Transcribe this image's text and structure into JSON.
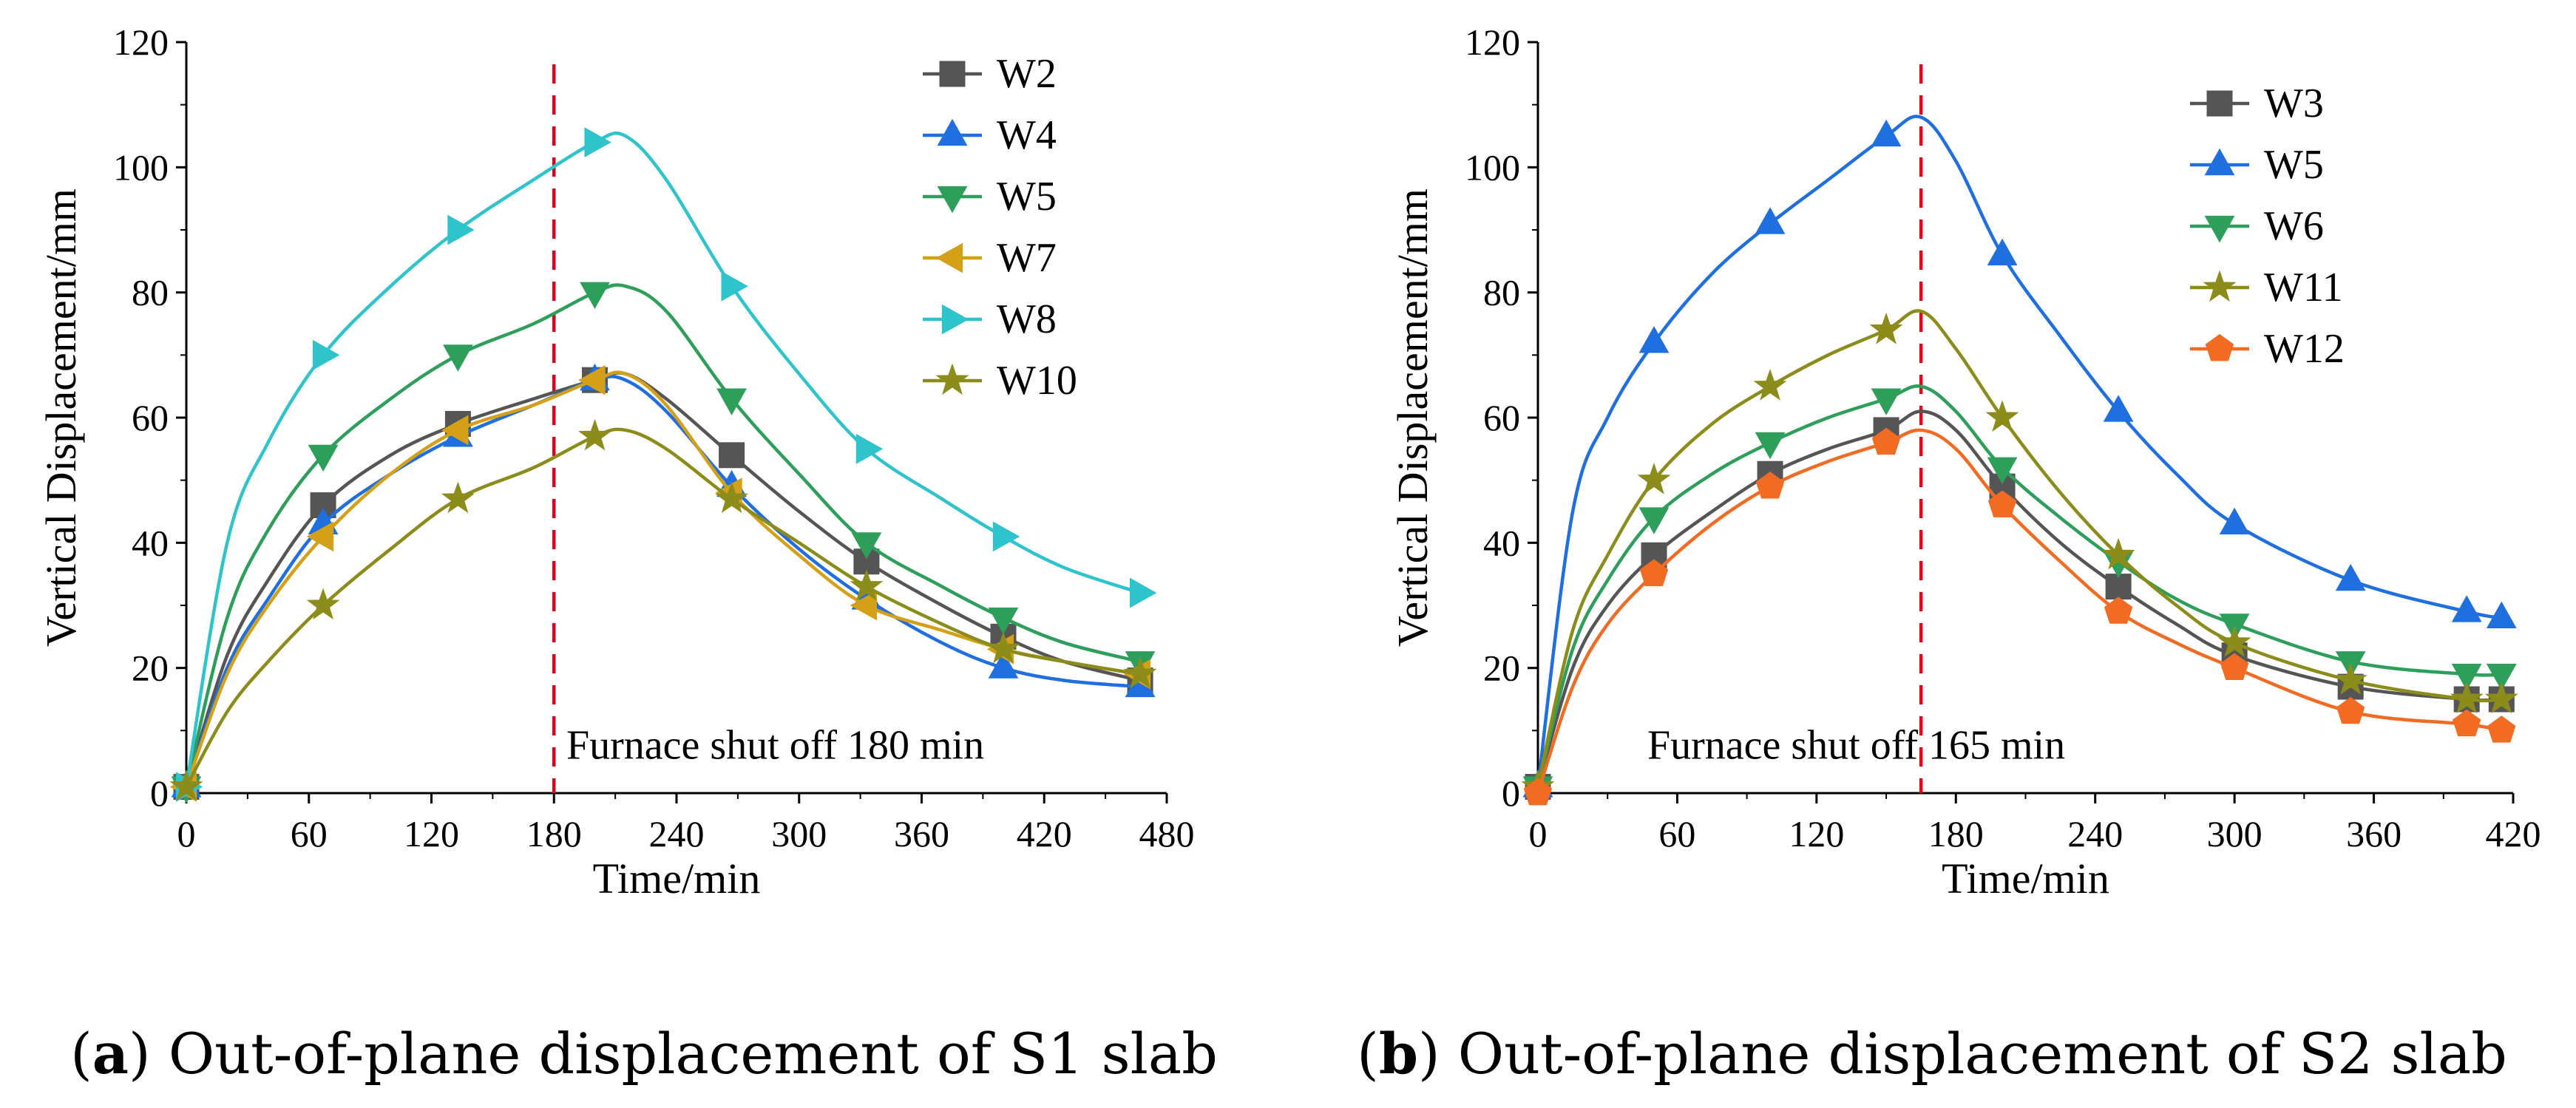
{
  "chart_data": [
    {
      "type": "line",
      "panel_label": "a",
      "caption": "Out-of-plane displacement of S1 slab",
      "xlabel": "Time/min",
      "ylabel": "Vertical Displacement/mm",
      "xlim": [
        0,
        480
      ],
      "ylim": [
        0,
        120
      ],
      "xticks": [
        0,
        60,
        120,
        180,
        240,
        300,
        360,
        420,
        480
      ],
      "yticks": [
        0,
        20,
        40,
        60,
        80,
        100,
        120
      ],
      "shutoff_time": 180,
      "annotation": "Furnace shut off 180 min",
      "legend_position": "top-right",
      "grid": false,
      "series": [
        {
          "name": "W2",
          "color": "#555555",
          "marker": "square",
          "x": [
            0,
            67,
            133,
            200,
            267,
            333,
            400,
            467
          ],
          "y": [
            1,
            46,
            59,
            66,
            54,
            37,
            25,
            18
          ],
          "x_curve": [
            0,
            20,
            40,
            67,
            100,
            133,
            170,
            200,
            215,
            235,
            267,
            300,
            333,
            370,
            400,
            430,
            467
          ],
          "y_curve": [
            1,
            22,
            34,
            46,
            54,
            59,
            63,
            66,
            67,
            63,
            54,
            45,
            37,
            30,
            25,
            21,
            18
          ]
        },
        {
          "name": "W4",
          "color": "#1f6fe0",
          "marker": "triangle-up",
          "x": [
            0,
            67,
            133,
            200,
            267,
            333,
            400,
            467
          ],
          "y": [
            1,
            43,
            57,
            66,
            49,
            31,
            20,
            17
          ],
          "x_curve": [
            0,
            20,
            40,
            67,
            100,
            133,
            170,
            200,
            215,
            235,
            267,
            300,
            333,
            370,
            400,
            430,
            467
          ],
          "y_curve": [
            1,
            20,
            31,
            43,
            51,
            57,
            62,
            66,
            66,
            61,
            49,
            39,
            31,
            24,
            20,
            18,
            17
          ]
        },
        {
          "name": "W5",
          "color": "#2e9e5b",
          "marker": "triangle-down",
          "x": [
            0,
            67,
            133,
            200,
            267,
            333,
            400,
            467
          ],
          "y": [
            1,
            54,
            70,
            80,
            63,
            40,
            28,
            21
          ],
          "x_curve": [
            0,
            20,
            40,
            67,
            100,
            133,
            170,
            200,
            215,
            235,
            267,
            300,
            333,
            370,
            400,
            430,
            467
          ],
          "y_curve": [
            1,
            28,
            42,
            54,
            63,
            70,
            75,
            80,
            81,
            77,
            63,
            51,
            40,
            33,
            28,
            24,
            21
          ]
        },
        {
          "name": "W7",
          "color": "#d4a017",
          "marker": "triangle-left",
          "x": [
            0,
            67,
            133,
            200,
            267,
            333,
            400,
            467
          ],
          "y": [
            1,
            41,
            58,
            66,
            48,
            30,
            23,
            19
          ],
          "x_curve": [
            0,
            20,
            40,
            67,
            100,
            133,
            170,
            200,
            215,
            235,
            267,
            300,
            333,
            370,
            400,
            430,
            467
          ],
          "y_curve": [
            1,
            19,
            30,
            41,
            51,
            58,
            62,
            66,
            67,
            62,
            48,
            38,
            30,
            26,
            23,
            21,
            19
          ]
        },
        {
          "name": "W8",
          "color": "#2fc4cc",
          "marker": "triangle-right",
          "x": [
            0,
            67,
            133,
            200,
            267,
            333,
            400,
            467
          ],
          "y": [
            1,
            70,
            90,
            104,
            81,
            55,
            41,
            32
          ],
          "x_curve": [
            0,
            20,
            40,
            67,
            100,
            133,
            170,
            200,
            215,
            235,
            267,
            300,
            333,
            370,
            400,
            430,
            467
          ],
          "y_curve": [
            1,
            40,
            56,
            70,
            81,
            90,
            98,
            104,
            105,
            98,
            81,
            67,
            55,
            47,
            41,
            36,
            32
          ]
        },
        {
          "name": "W10",
          "color": "#8c8c1a",
          "marker": "star",
          "x": [
            0,
            67,
            133,
            200,
            267,
            333,
            400,
            467
          ],
          "y": [
            1,
            30,
            47,
            57,
            47,
            33,
            23,
            19
          ],
          "x_curve": [
            0,
            20,
            40,
            67,
            100,
            133,
            170,
            200,
            215,
            235,
            267,
            300,
            333,
            370,
            400,
            430,
            467
          ],
          "y_curve": [
            1,
            13,
            21,
            30,
            39,
            47,
            52,
            57,
            58,
            55,
            47,
            40,
            33,
            27,
            23,
            21,
            19
          ]
        }
      ]
    },
    {
      "type": "line",
      "panel_label": "b",
      "caption": "Out-of-plane displacement of S2 slab",
      "xlabel": "Time/min",
      "ylabel": "Vertical Displacement/mm",
      "xlim": [
        0,
        420
      ],
      "ylim": [
        0,
        120
      ],
      "xticks": [
        0,
        60,
        120,
        180,
        240,
        300,
        360,
        420
      ],
      "yticks": [
        0,
        20,
        40,
        60,
        80,
        100,
        120
      ],
      "shutoff_time": 165,
      "annotation": "Furnace shut off 165 min",
      "legend_position": "top-right",
      "grid": false,
      "series": [
        {
          "name": "W3",
          "color": "#555555",
          "marker": "square",
          "x": [
            0,
            50,
            100,
            150,
            200,
            250,
            300,
            350,
            400,
            415
          ],
          "y": [
            1,
            38,
            51,
            58,
            49,
            33,
            22,
            17,
            15,
            15
          ],
          "x_curve": [
            0,
            15,
            30,
            50,
            75,
            100,
            125,
            150,
            165,
            180,
            200,
            225,
            250,
            275,
            300,
            350,
            400,
            415
          ],
          "y_curve": [
            1,
            20,
            30,
            38,
            45,
            51,
            55,
            58,
            61,
            58,
            49,
            40,
            33,
            27,
            22,
            17,
            15,
            15
          ]
        },
        {
          "name": "W5",
          "color": "#1f6fe0",
          "marker": "triangle-up",
          "x": [
            0,
            50,
            100,
            150,
            200,
            250,
            300,
            350,
            400,
            415
          ],
          "y": [
            1,
            72,
            91,
            105,
            86,
            61,
            43,
            34,
            29,
            28
          ],
          "x_curve": [
            0,
            15,
            30,
            50,
            75,
            100,
            125,
            150,
            165,
            180,
            200,
            225,
            250,
            275,
            300,
            350,
            400,
            415
          ],
          "y_curve": [
            1,
            45,
            60,
            72,
            83,
            91,
            98,
            105,
            108,
            101,
            86,
            73,
            61,
            51,
            43,
            34,
            29,
            28
          ]
        },
        {
          "name": "W6",
          "color": "#2e9e5b",
          "marker": "triangle-down",
          "x": [
            0,
            50,
            100,
            150,
            200,
            250,
            300,
            350,
            400,
            415
          ],
          "y": [
            1,
            44,
            56,
            63,
            52,
            37,
            27,
            21,
            19,
            19
          ],
          "x_curve": [
            0,
            15,
            30,
            50,
            75,
            100,
            125,
            150,
            165,
            180,
            200,
            225,
            250,
            275,
            300,
            350,
            400,
            415
          ],
          "y_curve": [
            1,
            23,
            34,
            44,
            51,
            56,
            60,
            63,
            65,
            61,
            52,
            44,
            37,
            31,
            27,
            21,
            19,
            19
          ]
        },
        {
          "name": "W11",
          "color": "#8c8c1a",
          "marker": "star",
          "x": [
            0,
            50,
            100,
            150,
            200,
            250,
            300,
            350,
            400,
            415
          ],
          "y": [
            1,
            50,
            65,
            74,
            60,
            38,
            24,
            18,
            15,
            15
          ],
          "x_curve": [
            0,
            15,
            30,
            50,
            75,
            100,
            125,
            150,
            165,
            180,
            200,
            225,
            250,
            275,
            300,
            350,
            400,
            415
          ],
          "y_curve": [
            1,
            26,
            38,
            50,
            59,
            65,
            70,
            74,
            77,
            71,
            60,
            48,
            38,
            30,
            24,
            18,
            15,
            15
          ]
        },
        {
          "name": "W12",
          "color": "#f26b22",
          "marker": "pentagon",
          "x": [
            0,
            50,
            100,
            150,
            200,
            250,
            300,
            350,
            400,
            415
          ],
          "y": [
            0,
            35,
            49,
            56,
            46,
            29,
            20,
            13,
            11,
            10
          ],
          "x_curve": [
            0,
            15,
            30,
            50,
            75,
            100,
            125,
            150,
            165,
            180,
            200,
            225,
            250,
            275,
            300,
            350,
            400,
            415
          ],
          "y_curve": [
            0,
            17,
            27,
            35,
            43,
            49,
            53,
            56,
            58,
            55,
            46,
            37,
            29,
            24,
            20,
            13,
            11,
            10
          ]
        }
      ]
    }
  ]
}
